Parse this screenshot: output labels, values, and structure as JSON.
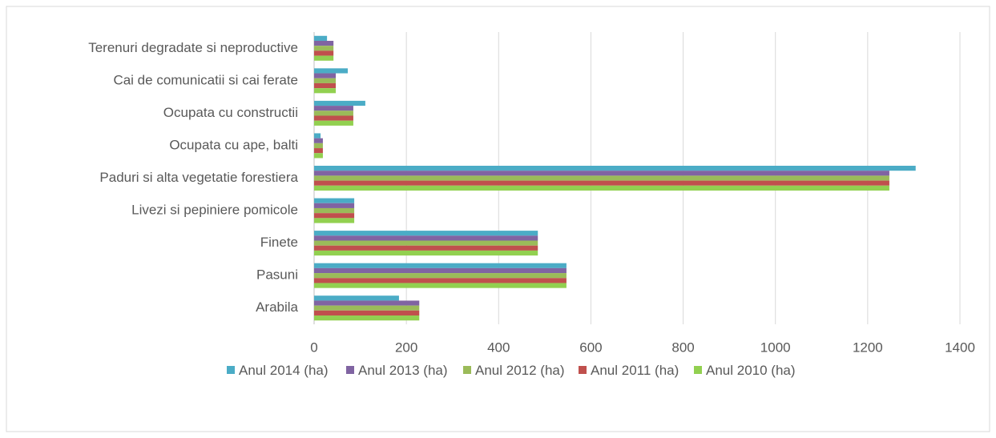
{
  "chart_data": {
    "type": "hbar",
    "categories": [
      "Arabila",
      "Pasuni",
      "Finete",
      "Livezi si pepiniere pomicole",
      "Paduri si alta vegetatie forestiera",
      "Ocupata cu ape, balti",
      "Ocupata cu constructii",
      "Cai de comunicatii si cai ferate",
      "Terenuri degradate si neproductive"
    ],
    "series": [
      {
        "name": "Anul 2014 (ha)",
        "color": "#4bacc6",
        "values": [
          184,
          547,
          485,
          87,
          1304,
          14,
          111,
          73,
          28
        ]
      },
      {
        "name": "Anul 2013 (ha)",
        "color": "#8064a2",
        "values": [
          228,
          547,
          485,
          87,
          1247,
          19,
          85,
          47,
          42
        ]
      },
      {
        "name": "Anul 2012 (ha)",
        "color": "#9bbb59",
        "values": [
          228,
          547,
          485,
          87,
          1247,
          19,
          85,
          47,
          42
        ]
      },
      {
        "name": "Anul 2011 (ha)",
        "color": "#c0504d",
        "values": [
          228,
          547,
          485,
          87,
          1247,
          19,
          85,
          47,
          42
        ]
      },
      {
        "name": "Anul 2010 (ha)",
        "color": "#92d050",
        "values": [
          228,
          547,
          485,
          87,
          1247,
          19,
          85,
          47,
          42
        ]
      }
    ],
    "xlim": [
      0,
      1400
    ],
    "xticks": [
      0,
      200,
      400,
      600,
      800,
      1000,
      1200,
      1400
    ],
    "grid": true,
    "legend": "bottom"
  }
}
